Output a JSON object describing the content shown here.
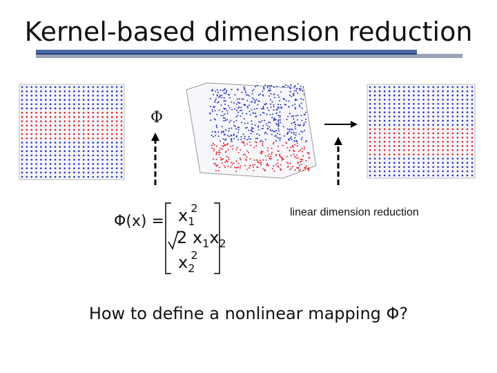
{
  "title": "Kernel-based dimension reduction",
  "phi_symbol": "Φ",
  "formula": {
    "lhs": "Φ(x) =",
    "row1_base": "x",
    "row1_sub": "1",
    "row1_sup": "2",
    "row2_coef": "2",
    "row2_x1": "x",
    "row2_sub1": "1",
    "row2_x2": "x",
    "row2_sub2": "2",
    "row3_base": "x",
    "row3_sub": "2",
    "row3_sup": "2"
  },
  "linear_label": "linear dimension reduction",
  "question": "How to define a nonlinear mapping Φ?",
  "colors": {
    "red": "#e02020",
    "blue": "#2030c0",
    "title_bar": "#4a6aa8"
  }
}
